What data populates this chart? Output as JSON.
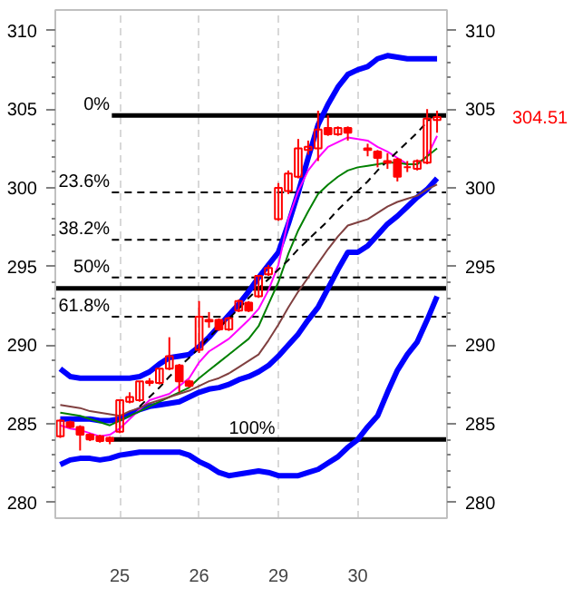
{
  "chart_data": {
    "type": "candlestick",
    "color": "#ff0000",
    "categories": [
      null,
      null,
      null,
      null,
      null,
      null,
      "25",
      null,
      null,
      null,
      null,
      null,
      null,
      null,
      "26",
      null,
      null,
      null,
      null,
      null,
      null,
      null,
      "29",
      null,
      null,
      null,
      null,
      null,
      null,
      null,
      "30",
      null,
      null,
      null,
      null,
      null,
      null,
      null,
      null
    ],
    "ohlc": [
      [
        284.2,
        285.3,
        284.1,
        285.2
      ],
      [
        285.1,
        285.2,
        284.7,
        284.8
      ],
      [
        284.8,
        284.9,
        283.3,
        284.3
      ],
      [
        284.3,
        284.4,
        283.9,
        284.0
      ],
      [
        284.2,
        284.3,
        283.8,
        283.9
      ],
      [
        284.1,
        284.2,
        283.7,
        283.9
      ],
      [
        284.5,
        286.5,
        284.4,
        286.5
      ],
      [
        286.4,
        287.0,
        286.3,
        286.7
      ],
      [
        286.5,
        287.7,
        286.4,
        287.7
      ],
      [
        287.6,
        287.9,
        287.4,
        287.7
      ],
      [
        287.6,
        288.5,
        287.5,
        288.5
      ],
      [
        288.5,
        290.5,
        288.4,
        289.3
      ],
      [
        288.7,
        288.8,
        287.0,
        287.7
      ],
      [
        287.7,
        287.8,
        287.3,
        287.4
      ],
      [
        289.7,
        292.8,
        289.5,
        291.8
      ],
      [
        291.5,
        292.1,
        291.1,
        291.6
      ],
      [
        291.6,
        291.7,
        290.9,
        291.0
      ],
      [
        291.0,
        291.8,
        290.9,
        291.7
      ],
      [
        292.2,
        292.9,
        292.1,
        292.8
      ],
      [
        292.7,
        292.8,
        292.1,
        292.2
      ],
      [
        293.1,
        294.4,
        293.0,
        294.4
      ],
      [
        294.5,
        295.1,
        294.4,
        294.9
      ],
      [
        298.0,
        300.3,
        297.9,
        300.0
      ],
      [
        299.8,
        301.1,
        299.6,
        300.9
      ],
      [
        300.7,
        303.1,
        300.6,
        302.5
      ],
      [
        302.4,
        303.0,
        302.1,
        302.6
      ],
      [
        302.5,
        304.9,
        301.7,
        303.7
      ],
      [
        303.8,
        304.6,
        303.3,
        303.4
      ],
      [
        303.4,
        303.9,
        303.3,
        303.8
      ],
      [
        303.8,
        303.9,
        303.0,
        303.5
      ],
      null,
      [
        302.4,
        302.8,
        302.0,
        302.5
      ],
      [
        302.3,
        302.4,
        301.3,
        301.9
      ],
      [
        301.6,
        302.2,
        301.2,
        301.7
      ],
      [
        301.8,
        301.9,
        300.4,
        300.7
      ],
      [
        301.3,
        301.7,
        301.0,
        301.3
      ],
      [
        301.2,
        301.8,
        301.1,
        301.7
      ],
      [
        301.6,
        305.0,
        301.5,
        304.4
      ],
      [
        304.3,
        304.9,
        303.5,
        304.5
      ]
    ],
    "series": [
      {
        "type": "line",
        "color": "#0000ff",
        "values": [
          288.5,
          288.0,
          287.9,
          287.9,
          287.9,
          287.9,
          287.9,
          287.9,
          288.0,
          288.3,
          288.8,
          289.2,
          289.3,
          289.4,
          289.9,
          290.5,
          291.2,
          291.9,
          292.6,
          293.4,
          294.3,
          295.1,
          295.9,
          297.7,
          299.7,
          301.9,
          304.0,
          305.3,
          306.4,
          307.2,
          307.5,
          307.7,
          308.2,
          308.4,
          308.3,
          308.2,
          308.2,
          308.2,
          308.2
        ]
      },
      {
        "type": "line",
        "color": "#0000ff",
        "values": [
          285.3,
          285.3,
          285.3,
          285.3,
          285.2,
          285.2,
          285.3,
          285.6,
          285.9,
          286.1,
          286.2,
          286.3,
          286.4,
          286.7,
          287.0,
          287.2,
          287.3,
          287.5,
          287.8,
          288.0,
          288.3,
          288.7,
          289.3,
          290.0,
          290.7,
          291.6,
          292.4,
          293.6,
          294.8,
          295.9,
          295.9,
          296.3,
          297.0,
          297.7,
          298.2,
          298.8,
          299.4,
          299.9,
          300.6
        ]
      },
      {
        "type": "line",
        "color": "#0000ff",
        "values": [
          282.4,
          282.7,
          282.8,
          282.8,
          282.7,
          282.8,
          283.0,
          283.1,
          283.2,
          283.2,
          283.2,
          283.2,
          283.2,
          283.0,
          282.6,
          282.3,
          281.9,
          281.7,
          281.8,
          281.9,
          282.0,
          281.9,
          281.7,
          281.7,
          281.7,
          281.9,
          282.1,
          282.5,
          282.9,
          283.5,
          284.0,
          284.8,
          285.5,
          287.0,
          288.4,
          289.4,
          290.2,
          291.6,
          293.1
        ]
      },
      {
        "type": "line",
        "color": "#ff00ff",
        "values": [
          284.9,
          284.7,
          284.6,
          284.4,
          284.2,
          284.3,
          284.7,
          285.3,
          285.9,
          286.5,
          286.7,
          286.9,
          287.4,
          287.9,
          288.9,
          289.6,
          290.0,
          290.4,
          291.0,
          291.6,
          292.3,
          293.5,
          295.1,
          298.0,
          299.8,
          301.1,
          301.9,
          302.6,
          302.9,
          303.2,
          303.1,
          303.0,
          302.6,
          302.3,
          301.9,
          301.5,
          301.5,
          302.0,
          303.3
        ]
      },
      {
        "type": "line",
        "color": "#008000",
        "values": [
          285.7,
          285.6,
          285.5,
          285.3,
          285.1,
          284.9,
          285.2,
          285.5,
          285.8,
          286.1,
          286.4,
          286.7,
          287.0,
          287.3,
          287.9,
          288.4,
          288.9,
          289.4,
          289.9,
          290.4,
          291.2,
          292.6,
          294.0,
          295.8,
          297.3,
          298.5,
          299.6,
          300.2,
          300.7,
          301.1,
          301.3,
          301.4,
          301.5,
          301.6,
          301.6,
          301.5,
          301.5,
          302.0,
          302.5
        ]
      },
      {
        "type": "line",
        "color": "#804040",
        "values": [
          286.2,
          286.1,
          286.0,
          285.8,
          285.7,
          285.6,
          285.5,
          285.8,
          286.0,
          286.3,
          286.5,
          286.7,
          286.9,
          287.1,
          287.4,
          287.7,
          287.9,
          288.2,
          288.6,
          289.0,
          289.4,
          290.3,
          291.3,
          292.4,
          293.4,
          294.3,
          295.2,
          296.1,
          296.9,
          297.6,
          297.8,
          298.0,
          298.4,
          298.8,
          299.1,
          299.3,
          299.5,
          299.9,
          300.2
        ]
      },
      {
        "type": "line",
        "color": "#000000",
        "line_style": "dashed",
        "values": [
          null,
          null,
          null,
          null,
          null,
          null,
          null,
          null,
          286.1,
          286.7,
          287.3,
          288.0,
          288.6,
          289.2,
          289.8,
          290.5,
          291.1,
          291.7,
          292.3,
          293.0,
          293.6,
          294.2,
          294.8,
          295.4,
          296.1,
          296.7,
          297.3,
          297.9,
          298.6,
          299.2,
          299.8,
          300.4,
          301.1,
          301.7,
          302.3,
          302.9,
          303.5,
          304.2,
          304.8
        ]
      }
    ],
    "ref_lines": [
      {
        "axis": "y",
        "value": 304.6,
        "line_style": "solid"
      },
      {
        "axis": "y",
        "value": 299.7,
        "line_style": "dashed"
      },
      {
        "axis": "y",
        "value": 296.7,
        "line_style": "dashed"
      },
      {
        "axis": "y",
        "value": 294.3,
        "line_style": "dashed"
      },
      {
        "axis": "y",
        "value": 291.8,
        "line_style": "dashed"
      },
      {
        "axis": "y",
        "value": 284.0,
        "line_style": "solid"
      },
      {
        "axis": "y",
        "value": 293.6,
        "line_style": "solid"
      }
    ],
    "annotations": [
      "0%",
      "23.6%",
      "38.2%",
      "50%",
      "61.8%",
      "100%",
      "304.51"
    ],
    "ylim": [
      279,
      311.3
    ],
    "yticks": [
      280,
      {
        "value": 281,
        "label": null
      },
      {
        "value": 282,
        "label": null
      },
      {
        "value": 283,
        "label": null
      },
      {
        "value": 284,
        "label": null
      },
      285,
      {
        "value": 286,
        "label": null
      },
      {
        "value": 287,
        "label": null
      },
      {
        "value": 288,
        "label": null
      },
      {
        "value": 289,
        "label": null
      },
      290,
      {
        "value": 291,
        "label": null
      },
      {
        "value": 292,
        "label": null
      },
      {
        "value": 293,
        "label": null
      },
      {
        "value": 294,
        "label": null
      },
      295,
      {
        "value": 296,
        "label": null
      },
      {
        "value": 297,
        "label": null
      },
      {
        "value": 298,
        "label": null
      },
      {
        "value": 299,
        "label": null
      },
      300,
      {
        "value": 301,
        "label": null
      },
      {
        "value": 302,
        "label": null
      },
      {
        "value": 303,
        "label": null
      },
      {
        "value": 304,
        "label": null
      },
      305,
      {
        "value": 306,
        "label": null
      },
      {
        "value": 307,
        "label": null
      },
      {
        "value": 308,
        "label": null
      },
      {
        "value": 309,
        "label": null
      },
      310
    ],
    "y2lim": [
      279,
      311.3
    ],
    "y2ticks": [
      280,
      {
        "value": 281,
        "label": null
      },
      {
        "value": 282,
        "label": null
      },
      {
        "value": 283,
        "label": null
      },
      {
        "value": 284,
        "label": null
      },
      285,
      {
        "value": 286,
        "label": null
      },
      {
        "value": 287,
        "label": null
      },
      {
        "value": 288,
        "label": null
      },
      {
        "value": 289,
        "label": null
      },
      290,
      {
        "value": 291,
        "label": null
      },
      {
        "value": 292,
        "label": null
      },
      {
        "value": 293,
        "label": null
      },
      {
        "value": 294,
        "label": null
      },
      295,
      {
        "value": 296,
        "label": null
      },
      {
        "value": 297,
        "label": null
      },
      {
        "value": 298,
        "label": null
      },
      {
        "value": 299,
        "label": null
      },
      300,
      {
        "value": 301,
        "label": null
      },
      {
        "value": 302,
        "label": null
      },
      {
        "value": 303,
        "label": null
      },
      {
        "value": 304,
        "label": null
      },
      305,
      {
        "value": 306,
        "label": null
      },
      {
        "value": 307,
        "label": null
      },
      {
        "value": 308,
        "label": null
      },
      {
        "value": 309,
        "label": null
      },
      310
    ],
    "grid": "x"
  }
}
